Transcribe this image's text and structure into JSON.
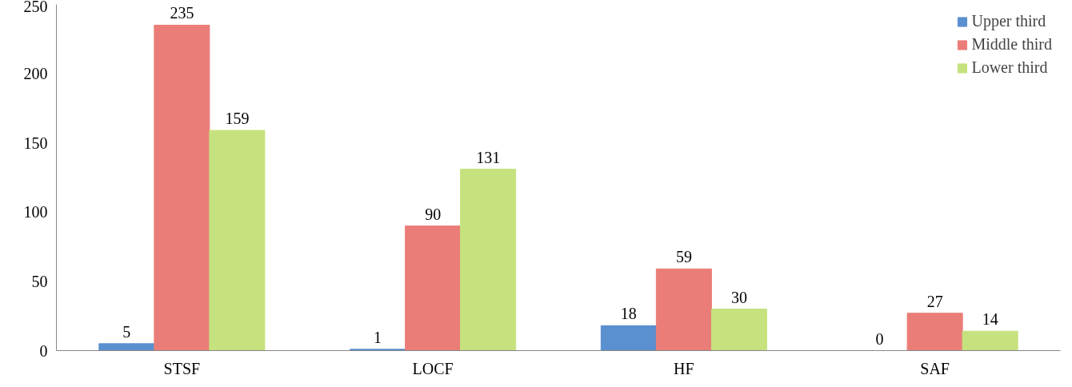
{
  "chart_data": {
    "type": "bar",
    "categories": [
      "STSF",
      "LOCF",
      "HF",
      "SAF"
    ],
    "series": [
      {
        "name": "Upper third",
        "color": "#5a8fd0",
        "values": [
          5,
          1,
          18,
          0
        ]
      },
      {
        "name": "Middle third",
        "color": "#ea7d78",
        "values": [
          235,
          90,
          59,
          27
        ]
      },
      {
        "name": "Lower third",
        "color": "#c6e27e",
        "values": [
          159,
          131,
          30,
          14
        ]
      }
    ],
    "ylim": [
      0,
      250
    ],
    "yticks": [
      0,
      50,
      100,
      150,
      200,
      250
    ],
    "grid": false,
    "legend": "top right",
    "data_labels": true
  }
}
